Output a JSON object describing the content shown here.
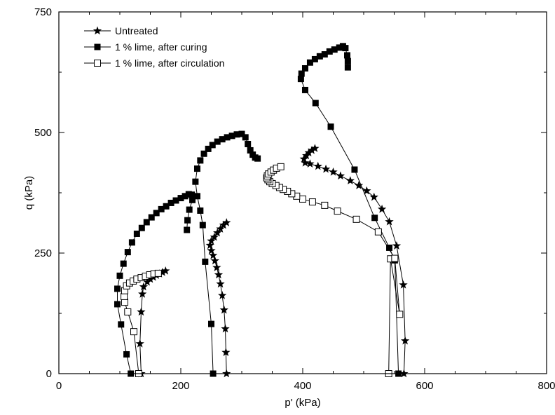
{
  "chart_data": {
    "type": "scatter",
    "xlabel": "p' (kPa)",
    "ylabel": "q (kPa)",
    "xlim": [
      0,
      800
    ],
    "ylim": [
      0,
      750
    ],
    "x_ticks": [
      0,
      200,
      400,
      600,
      800
    ],
    "y_ticks": [
      0,
      250,
      500,
      750
    ],
    "x_tick_labels": [
      "0",
      "200",
      "400",
      "600",
      "800"
    ],
    "y_tick_labels": [
      "0",
      "250",
      "500",
      "750"
    ],
    "grid": false,
    "legend_position": "top-left",
    "series": [
      {
        "name": "Untreated",
        "marker": "star",
        "color": "#000000",
        "curves": [
          [
            [
              135,
              0
            ],
            [
              133,
              62
            ],
            [
              135,
              128
            ],
            [
              137,
              165
            ],
            [
              139,
              180
            ],
            [
              145,
              190
            ],
            [
              150,
              196
            ],
            [
              155,
              200
            ],
            [
              160,
              204
            ],
            [
              165,
              207
            ],
            [
              170,
              210
            ],
            [
              175,
              213
            ]
          ],
          [
            [
              275,
              0
            ],
            [
              274,
              44
            ],
            [
              273,
              93
            ],
            [
              271,
              132
            ],
            [
              268,
              162
            ],
            [
              265,
              186
            ],
            [
              262,
              205
            ],
            [
              259,
              220
            ],
            [
              256,
              234
            ],
            [
              253,
              245
            ],
            [
              250,
              255
            ],
            [
              248,
              266
            ],
            [
              250,
              275
            ],
            [
              255,
              283
            ],
            [
              260,
              292
            ],
            [
              265,
              300
            ],
            [
              270,
              308
            ],
            [
              275,
              313
            ]
          ],
          [
            [
              566,
              0
            ],
            [
              568,
              68
            ],
            [
              565,
              184
            ],
            [
              554,
              265
            ],
            [
              542,
              315
            ],
            [
              530,
              341
            ],
            [
              517,
              366
            ],
            [
              505,
              379
            ],
            [
              492,
              390
            ],
            [
              478,
              400
            ],
            [
              462,
              410
            ],
            [
              450,
              418
            ],
            [
              438,
              424
            ],
            [
              425,
              430
            ],
            [
              412,
              435
            ],
            [
              404,
              437
            ],
            [
              402,
              445
            ],
            [
              406,
              452
            ],
            [
              410,
              458
            ],
            [
              415,
              463
            ],
            [
              420,
              467
            ]
          ]
        ]
      },
      {
        "name": "1 % lime, after curing",
        "marker": "filled-square",
        "color": "#000000",
        "curves": [
          [
            [
              118,
              0
            ],
            [
              111,
              40
            ],
            [
              102,
              102
            ],
            [
              96,
              144
            ],
            [
              96,
              176
            ],
            [
              100,
              203
            ],
            [
              106,
              228
            ],
            [
              113,
              252
            ],
            [
              120,
              272
            ],
            [
              128,
              290
            ],
            [
              136,
              302
            ],
            [
              144,
              314
            ],
            [
              152,
              324
            ],
            [
              160,
              333
            ],
            [
              168,
              341
            ],
            [
              176,
              347
            ],
            [
              184,
              354
            ],
            [
              192,
              359
            ],
            [
              200,
              364
            ],
            [
              207,
              368
            ],
            [
              213,
              372
            ],
            [
              218,
              371
            ],
            [
              219,
              360
            ],
            [
              214,
              340
            ],
            [
              211,
              318
            ],
            [
              210,
              298
            ]
          ],
          [
            [
              253,
              0
            ],
            [
              250,
              103
            ],
            [
              240,
              232
            ],
            [
              236,
              308
            ],
            [
              232,
              338
            ],
            [
              227,
              368
            ],
            [
              224,
              398
            ],
            [
              227,
              425
            ],
            [
              232,
              442
            ],
            [
              238,
              456
            ],
            [
              245,
              466
            ],
            [
              252,
              474
            ],
            [
              260,
              481
            ],
            [
              268,
              486
            ],
            [
              276,
              490
            ],
            [
              284,
              493
            ],
            [
              292,
              496
            ],
            [
              300,
              497
            ],
            [
              306,
              490
            ],
            [
              310,
              476
            ],
            [
              314,
              463
            ],
            [
              318,
              454
            ],
            [
              322,
              448
            ],
            [
              326,
              446
            ]
          ],
          [
            [
              557,
              0
            ],
            [
              551,
              235
            ],
            [
              542,
              261
            ],
            [
              518,
              323
            ],
            [
              485,
              423
            ],
            [
              446,
              512
            ],
            [
              421,
              561
            ],
            [
              404,
              588
            ],
            [
              397,
              611
            ],
            [
              398,
              622
            ],
            [
              404,
              633
            ],
            [
              412,
              645
            ],
            [
              420,
              652
            ],
            [
              428,
              658
            ],
            [
              436,
              662
            ],
            [
              444,
              668
            ],
            [
              452,
              672
            ],
            [
              460,
              676
            ],
            [
              466,
              679
            ],
            [
              470,
              675
            ],
            [
              473,
              660
            ],
            [
              474,
              648
            ],
            [
              474,
              635
            ]
          ]
        ]
      },
      {
        "name": "1 % lime, after circulation",
        "marker": "open-square",
        "color": "#000000",
        "curves": [
          [
            [
              131,
              0
            ],
            [
              123,
              87
            ],
            [
              113,
              128
            ],
            [
              108,
              148
            ],
            [
              107,
              160
            ],
            [
              108,
              172
            ],
            [
              111,
              182
            ],
            [
              116,
              188
            ],
            [
              122,
              192
            ],
            [
              128,
              196
            ],
            [
              135,
              199
            ],
            [
              142,
              202
            ],
            [
              149,
              205
            ],
            [
              156,
              207
            ],
            [
              163,
              208
            ]
          ],
          [
            [
              541,
              0
            ],
            [
              544,
              238
            ],
            [
              559,
              123
            ],
            [
              551,
              239
            ],
            [
              524,
              294
            ],
            [
              488,
              320
            ],
            [
              457,
              337
            ],
            [
              436,
              349
            ],
            [
              416,
              356
            ],
            [
              400,
              362
            ],
            [
              390,
              368
            ],
            [
              382,
              373
            ],
            [
              375,
              378
            ],
            [
              368,
              382
            ],
            [
              362,
              386
            ],
            [
              356,
              390
            ],
            [
              350,
              394
            ],
            [
              346,
              398
            ],
            [
              343,
              402
            ],
            [
              341,
              406
            ],
            [
              342,
              410
            ],
            [
              344,
              414
            ],
            [
              348,
              418
            ],
            [
              352,
              422
            ],
            [
              357,
              426
            ],
            [
              364,
              429
            ]
          ]
        ]
      }
    ]
  }
}
